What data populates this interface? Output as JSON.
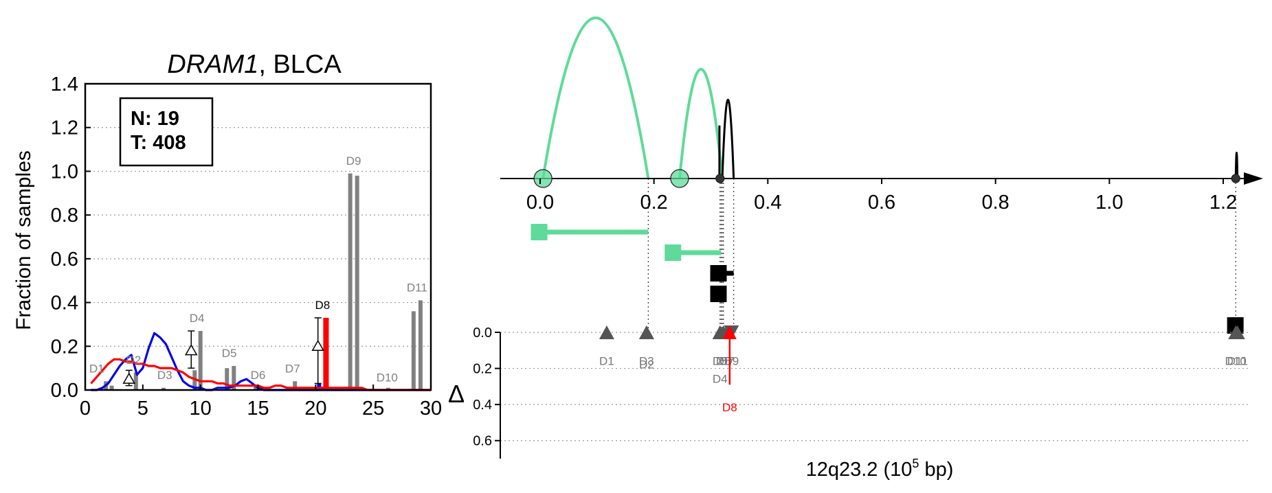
{
  "chart_data": [
    {
      "type": "bar",
      "title_gene": "DRAM1",
      "title_rest": ", BLCA",
      "ylabel": "Fraction of samples",
      "xlim": [
        0,
        30
      ],
      "ylim": [
        0,
        1.4
      ],
      "x_ticks": [
        "0",
        "5",
        "10",
        "15",
        "20",
        "25",
        "30"
      ],
      "y_ticks": [
        "0.0",
        "0.2",
        "0.4",
        "0.6",
        "0.8",
        "1.0",
        "1.2",
        "1.4"
      ],
      "grid": "horizontal dotted",
      "info_box": {
        "n_label": "N: 19",
        "t_label": "T: 408"
      },
      "bars": [
        {
          "x": 1.8,
          "value": 0.04,
          "color": "#808080"
        },
        {
          "x": 2.3,
          "value": 0.02,
          "color": "#808080"
        },
        {
          "x": 4.4,
          "value": 0.08,
          "color": "#808080"
        },
        {
          "x": 6.8,
          "value": 0.01,
          "color": "#808080"
        },
        {
          "x": 9.5,
          "value": 0.09,
          "color": "#808080"
        },
        {
          "x": 10.0,
          "value": 0.27,
          "color": "#808080"
        },
        {
          "x": 12.3,
          "value": 0.1,
          "color": "#808080"
        },
        {
          "x": 12.9,
          "value": 0.11,
          "color": "#808080"
        },
        {
          "x": 14.8,
          "value": 0.02,
          "color": "#808080"
        },
        {
          "x": 15.2,
          "value": 0.01,
          "color": "#808080"
        },
        {
          "x": 18.2,
          "value": 0.04,
          "color": "#808080"
        },
        {
          "x": 20.3,
          "value": 0.03,
          "color": "#0000ee"
        },
        {
          "x": 20.9,
          "value": 0.33,
          "color": "#ff0000"
        },
        {
          "x": 23.0,
          "value": 0.99,
          "color": "#808080"
        },
        {
          "x": 23.6,
          "value": 0.98,
          "color": "#808080"
        },
        {
          "x": 26.3,
          "value": 0.01,
          "color": "#808080"
        },
        {
          "x": 28.5,
          "value": 0.36,
          "color": "#808080"
        },
        {
          "x": 29.1,
          "value": 0.41,
          "color": "#808080"
        }
      ],
      "bar_labels": [
        {
          "text": "D1",
          "x": 1.0,
          "y": 0.08,
          "color": "#808080"
        },
        {
          "text": "D2",
          "x": 4.2,
          "y": 0.12,
          "color": "#808080"
        },
        {
          "text": "D3",
          "x": 6.9,
          "y": 0.05,
          "color": "#808080"
        },
        {
          "text": "D4",
          "x": 9.7,
          "y": 0.31,
          "color": "#808080"
        },
        {
          "text": "D5",
          "x": 12.5,
          "y": 0.15,
          "color": "#808080"
        },
        {
          "text": "D6",
          "x": 15.0,
          "y": 0.05,
          "color": "#808080"
        },
        {
          "text": "D7",
          "x": 18.0,
          "y": 0.08,
          "color": "#808080"
        },
        {
          "text": "D8",
          "x": 20.6,
          "y": 0.37,
          "color": "#000000"
        },
        {
          "text": "D9",
          "x": 23.3,
          "y": 1.03,
          "color": "#808080"
        },
        {
          "text": "D10",
          "x": 26.2,
          "y": 0.04,
          "color": "#808080"
        },
        {
          "text": "D11",
          "x": 28.8,
          "y": 0.45,
          "color": "#808080"
        }
      ],
      "delta_markers": [
        {
          "x": 3.8,
          "low": 0.02,
          "high": 0.09,
          "mid": 0.05
        },
        {
          "x": 9.2,
          "low": 0.1,
          "high": 0.27,
          "mid": 0.18
        },
        {
          "x": 20.2,
          "low": 0.03,
          "high": 0.33,
          "mid": 0.2
        }
      ],
      "series": [
        {
          "name": "",
          "color": "#0000ee",
          "x": [
            0.5,
            1,
            1.5,
            2,
            2.5,
            3,
            3.5,
            4,
            4.5,
            5,
            5.5,
            6,
            6.5,
            7,
            7.5,
            8,
            8.5,
            9,
            9.5,
            10,
            10.5,
            11,
            11.5,
            12,
            12.5,
            13,
            13.5,
            14,
            14.5,
            15,
            15.5,
            16,
            16.5,
            17,
            17.5,
            18,
            18.5,
            19,
            19.5,
            20,
            20.5,
            21,
            21.5,
            22,
            22.5,
            23,
            23.5,
            24,
            24.5,
            25,
            25.5,
            26,
            26.5,
            27,
            27.5,
            28,
            28.5,
            29,
            29.5,
            30
          ],
          "y": [
            0,
            0,
            0.01,
            0.03,
            0.07,
            0.11,
            0.14,
            0.16,
            0.07,
            0.1,
            0.19,
            0.26,
            0.24,
            0.21,
            0.15,
            0.09,
            0.04,
            0.02,
            0.01,
            0.01,
            0,
            0,
            0.01,
            0.01,
            0.01,
            0.02,
            0.04,
            0.05,
            0.03,
            0.01,
            0,
            0,
            0,
            0,
            0,
            0,
            0,
            0,
            0,
            0,
            0,
            0,
            0,
            0,
            0,
            0,
            0,
            0,
            0,
            0,
            0,
            0,
            0,
            0,
            0,
            0,
            0,
            0,
            0,
            0
          ]
        },
        {
          "name": "",
          "color": "#ff0000",
          "x": [
            0.5,
            1,
            1.5,
            2,
            2.5,
            3,
            3.5,
            4,
            4.5,
            5,
            5.5,
            6,
            6.5,
            7,
            7.5,
            8,
            8.5,
            9,
            9.5,
            10,
            10.5,
            11,
            11.5,
            12,
            12.5,
            13,
            13.5,
            14,
            14.5,
            15,
            15.5,
            16,
            16.5,
            17,
            17.5,
            18,
            18.5,
            19,
            19.5,
            20,
            20.5,
            21,
            21.5,
            22,
            22.5,
            23,
            23.5,
            24,
            24.5,
            25,
            25.5,
            26,
            26.5,
            27,
            27.5,
            28,
            28.5,
            29,
            29.5,
            30
          ],
          "y": [
            0.03,
            0.06,
            0.09,
            0.12,
            0.14,
            0.14,
            0.13,
            0.13,
            0.12,
            0.12,
            0.11,
            0.11,
            0.1,
            0.1,
            0.1,
            0.09,
            0.08,
            0.06,
            0.05,
            0.04,
            0.04,
            0.04,
            0.03,
            0.03,
            0.02,
            0.02,
            0.02,
            0.02,
            0.02,
            0.02,
            0.01,
            0.01,
            0.02,
            0.02,
            0.01,
            0.01,
            0.01,
            0.01,
            0.01,
            0.01,
            0.01,
            0.01,
            0.01,
            0.01,
            0.01,
            0.01,
            0.01,
            0.01,
            0,
            0,
            0,
            0,
            0,
            0,
            0,
            0,
            0,
            0,
            0,
            0
          ]
        }
      ]
    },
    {
      "type": "diagram",
      "xlabel_main": "12q23.2 (10",
      "xlabel_sup": "5",
      "xlabel_tail": " bp)",
      "xlim": [
        -0.07,
        1.27
      ],
      "x_ticks": [
        "0.0",
        "0.2",
        "0.4",
        "0.6",
        "0.8",
        "1.0",
        "1.2"
      ],
      "delta_axis_symbol": "Δ",
      "delta_ylim": [
        0,
        0.7
      ],
      "delta_ticks": [
        "0.0",
        "0.2",
        "0.4",
        "0.6"
      ],
      "green_color": "#5edb9a",
      "black_color": "#000000",
      "arcs": [
        {
          "start": 0.005,
          "end": 0.19,
          "height": 1.0,
          "color": "#5edb9a"
        },
        {
          "start": 0.245,
          "end": 0.32,
          "height": 0.68,
          "color": "#5edb9a"
        },
        {
          "start": 0.32,
          "end": 0.34,
          "height": 0.49,
          "color": "#000000"
        },
        {
          "start": 1.222,
          "end": 1.225,
          "height": 0.16,
          "color": "#000000"
        }
      ],
      "arc_ticks": [
        {
          "x": 0.315,
          "height": 0.33
        }
      ],
      "circles": [
        {
          "x": 0.005,
          "size": "large",
          "color": "#5edb9a"
        },
        {
          "x": 0.245,
          "size": "large",
          "color": "#5edb9a"
        },
        {
          "x": 0.316,
          "size": "small",
          "color": "#333333"
        },
        {
          "x": 1.222,
          "size": "small",
          "color": "#333333"
        }
      ],
      "tracks": [
        {
          "start": -0.015,
          "end": 0.19,
          "row": 0,
          "color": "#5edb9a"
        },
        {
          "start": 0.22,
          "end": 0.318,
          "row": 1,
          "color": "#5edb9a"
        },
        {
          "start": 0.3,
          "end": 0.34,
          "row": 2,
          "color": "#000000"
        },
        {
          "start": 0.3,
          "end": 0.322,
          "row": 3,
          "color": "#000000"
        },
        {
          "start": 1.208,
          "end": 1.227,
          "row": 4,
          "color": "#000000"
        }
      ],
      "guides": [
        0.19,
        0.316,
        0.318,
        0.32,
        0.322,
        0.34,
        1.222
      ],
      "delta_markers": [
        {
          "x": 0.117,
          "dir": "up",
          "delta": 0.0,
          "label": "D1",
          "label_delta": 0.18
        },
        {
          "x": 0.187,
          "dir": "up",
          "delta": 0.0,
          "label": "D3",
          "label_delta": 0.18
        },
        {
          "x": 0.187,
          "dir": "up",
          "delta": 0.0,
          "label": "D2",
          "label_delta": 0.2
        },
        {
          "x": 0.316,
          "dir": "up",
          "delta": 0.0,
          "label": "D5",
          "label_delta": 0.18
        },
        {
          "x": 0.322,
          "dir": "up",
          "delta": 0.0,
          "label": "D6",
          "label_delta": 0.18
        },
        {
          "x": 0.328,
          "dir": "up",
          "delta": 0.0,
          "label": "D7",
          "label_delta": 0.18
        },
        {
          "x": 0.336,
          "dir": "down",
          "delta": 0.0,
          "label": "D9",
          "label_delta": 0.18
        },
        {
          "x": 0.316,
          "dir": "up",
          "delta": 0.0,
          "label": "D4",
          "label_delta": 0.28
        },
        {
          "x": 1.222,
          "dir": "up",
          "delta": 0.0,
          "label": "D10",
          "label_delta": 0.18
        },
        {
          "x": 1.225,
          "dir": "up",
          "delta": 0.0,
          "label": "D11",
          "label_delta": 0.18
        }
      ],
      "highlight": {
        "x": 0.333,
        "delta": 0.29,
        "label": "D8",
        "label_delta": 0.4,
        "color": "#ff0000"
      }
    }
  ]
}
